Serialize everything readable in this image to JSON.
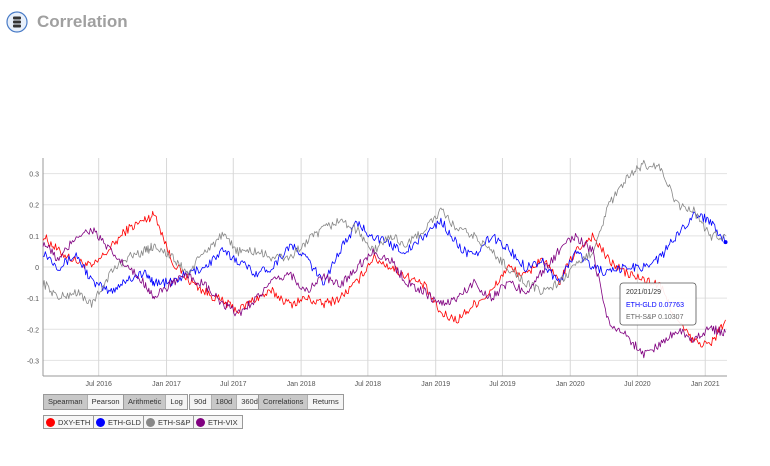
{
  "header": {
    "title": "Correlation",
    "logo_icon": "database-icon"
  },
  "chart_data": {
    "type": "line",
    "title": "",
    "xlabel": "",
    "ylabel": "",
    "ylim": [
      -0.35,
      0.35
    ],
    "xlim": [
      "2016-02-01",
      "2021-03-01"
    ],
    "y_ticks": [
      -0.3,
      -0.2,
      -0.1,
      0,
      0.1,
      0.2,
      0.3
    ],
    "y_tick_labels": [
      "-0.3",
      "-0.2",
      "-0.1",
      "0",
      "0.1",
      "0.2",
      "0.3"
    ],
    "x_ticks": [
      "2016-07-01",
      "2017-01-01",
      "2017-07-01",
      "2018-01-01",
      "2018-07-01",
      "2019-01-01",
      "2019-07-01",
      "2020-01-01",
      "2020-07-01",
      "2021-01-01"
    ],
    "x_tick_labels": [
      "Jul 2016",
      "Jan 2017",
      "Jul 2017",
      "Jan 2018",
      "Jul 2018",
      "Jan 2019",
      "Jul 2019",
      "Jan 2020",
      "Jul 2020",
      "Jan 2021"
    ],
    "grid": true,
    "series": [
      {
        "name": "DXY-ETH",
        "color": "#ff0000",
        "x": [
          "2016-02-01",
          "2016-03-15",
          "2016-05-01",
          "2016-06-15",
          "2016-08-01",
          "2016-09-15",
          "2016-11-01",
          "2016-12-01",
          "2017-01-15",
          "2017-03-01",
          "2017-04-15",
          "2017-06-01",
          "2017-07-15",
          "2017-09-01",
          "2017-10-15",
          "2017-12-01",
          "2018-01-15",
          "2018-03-01",
          "2018-04-15",
          "2018-06-01",
          "2018-07-15",
          "2018-09-01",
          "2018-10-15",
          "2018-12-01",
          "2019-01-15",
          "2019-03-01",
          "2019-04-15",
          "2019-06-01",
          "2019-07-15",
          "2019-09-01",
          "2019-10-15",
          "2019-12-01",
          "2020-01-15",
          "2020-03-01",
          "2020-04-15",
          "2020-06-01",
          "2020-07-15",
          "2020-09-01",
          "2020-10-15",
          "2020-12-01",
          "2021-01-15",
          "2021-02-25"
        ],
        "values": [
          0.1,
          0.05,
          0.02,
          0.0,
          0.06,
          0.12,
          0.15,
          0.17,
          0.02,
          -0.04,
          -0.08,
          -0.11,
          -0.14,
          -0.1,
          -0.08,
          -0.12,
          -0.1,
          -0.12,
          -0.1,
          -0.05,
          0.03,
          0.0,
          -0.03,
          -0.06,
          -0.15,
          -0.17,
          -0.12,
          -0.08,
          0.0,
          -0.03,
          0.03,
          -0.05,
          0.05,
          0.1,
          0.02,
          -0.02,
          -0.04,
          -0.06,
          -0.17,
          -0.24,
          -0.25,
          -0.17
        ]
      },
      {
        "name": "ETH-GLD",
        "color": "#0000ff",
        "x": [
          "2016-02-01",
          "2016-03-15",
          "2016-05-01",
          "2016-06-15",
          "2016-08-01",
          "2016-09-15",
          "2016-11-01",
          "2016-12-01",
          "2017-01-15",
          "2017-03-01",
          "2017-04-15",
          "2017-06-01",
          "2017-07-15",
          "2017-09-01",
          "2017-10-15",
          "2017-12-01",
          "2018-01-15",
          "2018-03-01",
          "2018-04-15",
          "2018-06-01",
          "2018-07-15",
          "2018-09-01",
          "2018-10-15",
          "2018-12-01",
          "2019-01-15",
          "2019-03-01",
          "2019-04-15",
          "2019-06-01",
          "2019-07-15",
          "2019-09-01",
          "2019-10-15",
          "2019-12-01",
          "2020-01-15",
          "2020-03-01",
          "2020-04-15",
          "2020-06-01",
          "2020-07-15",
          "2020-09-01",
          "2020-10-15",
          "2020-12-01",
          "2021-01-15",
          "2021-02-25"
        ],
        "values": [
          0.05,
          0.0,
          0.04,
          -0.05,
          -0.08,
          -0.04,
          -0.02,
          -0.05,
          -0.05,
          -0.02,
          0.0,
          0.05,
          0.02,
          -0.02,
          0.0,
          0.07,
          0.03,
          -0.05,
          0.05,
          0.14,
          0.1,
          0.07,
          0.05,
          0.1,
          0.15,
          0.07,
          0.03,
          0.1,
          0.06,
          0.0,
          0.02,
          -0.05,
          0.05,
          0.0,
          -0.02,
          0.0,
          0.0,
          0.03,
          0.1,
          0.17,
          0.15,
          0.08
        ]
      },
      {
        "name": "ETH-S&P",
        "color": "#888888",
        "x": [
          "2016-02-01",
          "2016-03-15",
          "2016-05-01",
          "2016-06-15",
          "2016-08-01",
          "2016-09-15",
          "2016-11-01",
          "2016-12-01",
          "2017-01-15",
          "2017-03-01",
          "2017-04-15",
          "2017-06-01",
          "2017-07-15",
          "2017-09-01",
          "2017-10-15",
          "2017-12-01",
          "2018-01-15",
          "2018-03-01",
          "2018-04-15",
          "2018-06-01",
          "2018-07-15",
          "2018-09-01",
          "2018-10-15",
          "2018-12-01",
          "2019-01-15",
          "2019-03-01",
          "2019-04-15",
          "2019-06-01",
          "2019-07-15",
          "2019-09-01",
          "2019-10-15",
          "2019-12-01",
          "2020-01-15",
          "2020-03-01",
          "2020-04-15",
          "2020-06-01",
          "2020-07-15",
          "2020-09-01",
          "2020-10-15",
          "2020-12-01",
          "2021-01-15",
          "2021-02-25"
        ],
        "values": [
          -0.05,
          -0.1,
          -0.08,
          -0.12,
          -0.02,
          0.03,
          0.05,
          0.07,
          0.03,
          -0.02,
          0.05,
          0.1,
          0.05,
          0.05,
          0.03,
          0.03,
          0.08,
          0.12,
          0.15,
          0.12,
          0.05,
          0.1,
          0.07,
          0.12,
          0.18,
          0.12,
          0.1,
          0.05,
          0.0,
          -0.05,
          -0.08,
          -0.05,
          0.0,
          0.05,
          0.2,
          0.28,
          0.33,
          0.32,
          0.2,
          0.18,
          0.1,
          0.1
        ]
      },
      {
        "name": "ETH-VIX",
        "color": "#800080",
        "x": [
          "2016-02-01",
          "2016-03-15",
          "2016-05-01",
          "2016-06-15",
          "2016-08-01",
          "2016-09-15",
          "2016-11-01",
          "2016-12-01",
          "2017-01-15",
          "2017-03-01",
          "2017-04-15",
          "2017-06-01",
          "2017-07-15",
          "2017-09-01",
          "2017-10-15",
          "2017-12-01",
          "2018-01-15",
          "2018-03-01",
          "2018-04-15",
          "2018-06-01",
          "2018-07-15",
          "2018-09-01",
          "2018-10-15",
          "2018-12-01",
          "2019-01-15",
          "2019-03-01",
          "2019-04-15",
          "2019-06-01",
          "2019-07-15",
          "2019-09-01",
          "2019-10-15",
          "2019-12-01",
          "2020-01-15",
          "2020-03-01",
          "2020-04-15",
          "2020-06-01",
          "2020-07-15",
          "2020-09-01",
          "2020-10-15",
          "2020-12-01",
          "2021-01-15",
          "2021-02-25"
        ],
        "values": [
          0.08,
          0.02,
          0.1,
          0.12,
          0.05,
          0.0,
          -0.05,
          -0.1,
          -0.05,
          -0.03,
          -0.06,
          -0.12,
          -0.15,
          -0.1,
          -0.05,
          -0.02,
          -0.08,
          -0.03,
          -0.06,
          0.0,
          0.05,
          0.02,
          -0.05,
          -0.08,
          -0.12,
          -0.1,
          -0.05,
          -0.1,
          -0.05,
          -0.08,
          -0.02,
          0.05,
          0.1,
          0.05,
          -0.18,
          -0.22,
          -0.28,
          -0.25,
          -0.2,
          -0.23,
          -0.2,
          -0.21
        ]
      }
    ],
    "tooltip": {
      "date": "2021/01/29",
      "lines": [
        {
          "name": "ETH-GLD",
          "value": "0.07763",
          "color": "#0000ff"
        },
        {
          "name": "ETH-S&P",
          "value": "0.10307",
          "color": "#666666"
        }
      ]
    }
  },
  "controls": {
    "method": [
      "Spearman",
      "Pearson"
    ],
    "scale": [
      "Arithmetic",
      "Log"
    ],
    "window": [
      "90d",
      "180d",
      "360d"
    ],
    "view": [
      "Correlations",
      "Returns"
    ]
  },
  "legend": [
    {
      "name": "DXY-ETH",
      "color": "#ff0000"
    },
    {
      "name": "ETH-GLD",
      "color": "#0000ff"
    },
    {
      "name": "ETH-S&P",
      "color": "#888888"
    },
    {
      "name": "ETH-VIX",
      "color": "#800080"
    }
  ]
}
